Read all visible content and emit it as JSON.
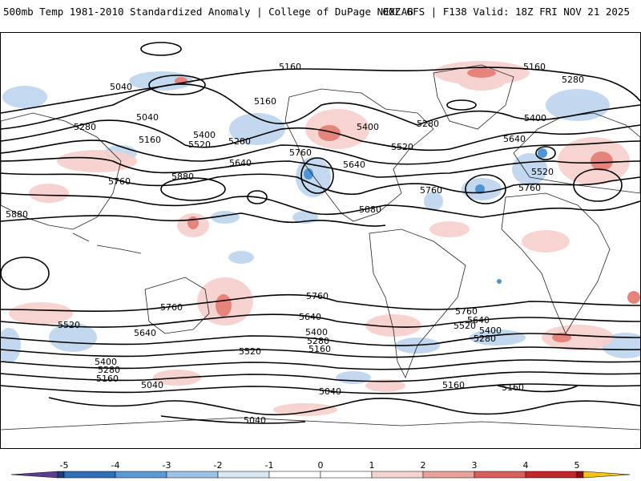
{
  "header": {
    "left_title": "500mb Temp 1981-2010 Standardized Anomaly | College of DuPage NEXLAB",
    "right_title": "00Z GFS | F138 Valid: 18Z FRI NOV 21 2025"
  },
  "map": {
    "variable": "500mb height contours (dm x10) with standardized temperature anomaly shading",
    "contour_labels": [
      "5160",
      "5040",
      "5280",
      "5400",
      "5520",
      "5640",
      "5760",
      "5880"
    ],
    "labels_shown": [
      {
        "text": "5160",
        "id": "label-5160-pacific-north"
      },
      {
        "text": "5040",
        "id": "label-5040-bering"
      },
      {
        "text": "5040",
        "id": "label-5040-aleutian"
      },
      {
        "text": "5280",
        "id": "label-5280-npac"
      },
      {
        "text": "5160",
        "id": "label-5160-npac"
      },
      {
        "text": "5400",
        "id": "label-5400-npac"
      },
      {
        "text": "5520",
        "id": "label-5520-npac"
      },
      {
        "text": "5280",
        "id": "label-5280-npac-east"
      },
      {
        "text": "5160",
        "id": "label-5160-alaska"
      },
      {
        "text": "5640",
        "id": "label-5640-npac"
      },
      {
        "text": "5760",
        "id": "label-5760-npac-west"
      },
      {
        "text": "5880",
        "id": "label-5880-subtrop"
      },
      {
        "text": "5880",
        "id": "label-5880-asia"
      },
      {
        "text": "5760",
        "id": "label-5760-us-west"
      },
      {
        "text": "5640",
        "id": "label-5640-us"
      },
      {
        "text": "5400",
        "id": "label-5400-canada"
      },
      {
        "text": "5520",
        "id": "label-5520-east"
      },
      {
        "text": "5280",
        "id": "label-5280-atlantic"
      },
      {
        "text": "5880",
        "id": "label-5880-gulf"
      },
      {
        "text": "5760",
        "id": "label-5760-atlantic"
      },
      {
        "text": "5160",
        "id": "label-5160-arctic"
      },
      {
        "text": "5280",
        "id": "label-5280-arctic"
      },
      {
        "text": "5400",
        "id": "label-5400-europe"
      },
      {
        "text": "5640",
        "id": "label-5640-europe"
      },
      {
        "text": "5520",
        "id": "label-5520-europe"
      },
      {
        "text": "5760",
        "id": "label-5760-africa"
      },
      {
        "text": "5760",
        "id": "label-5760-spac"
      },
      {
        "text": "5640",
        "id": "label-5640-spac"
      },
      {
        "text": "5520",
        "id": "label-5520-spac-west"
      },
      {
        "text": "5400",
        "id": "label-5400-spac-west"
      },
      {
        "text": "5280",
        "id": "label-5280-spac-west"
      },
      {
        "text": "5160",
        "id": "label-5160-spac-west"
      },
      {
        "text": "5520",
        "id": "label-5520-spac"
      },
      {
        "text": "5040",
        "id": "label-5040-ant-1"
      },
      {
        "text": "5040",
        "id": "label-5040-ant-2"
      },
      {
        "text": "5040",
        "id": "label-5040-ant-3"
      },
      {
        "text": "5760",
        "id": "label-5760-sam"
      },
      {
        "text": "5640",
        "id": "label-5640-sam"
      },
      {
        "text": "5400",
        "id": "label-5400-sam"
      },
      {
        "text": "5280",
        "id": "label-5280-sam"
      },
      {
        "text": "5160",
        "id": "label-5160-sam"
      },
      {
        "text": "5760",
        "id": "label-5760-satl"
      },
      {
        "text": "5640",
        "id": "label-5640-satl"
      },
      {
        "text": "5520",
        "id": "label-5520-satl"
      },
      {
        "text": "5400",
        "id": "label-5400-satl"
      },
      {
        "text": "5280",
        "id": "label-5280-satl"
      },
      {
        "text": "5160",
        "id": "label-5160-satl-1"
      },
      {
        "text": "5160",
        "id": "label-5160-satl-2"
      }
    ]
  },
  "colorbar": {
    "ticks": [
      "-5",
      "-4",
      "-3",
      "-2",
      "-1",
      "0",
      "1",
      "2",
      "3",
      "4",
      "5"
    ],
    "colors": [
      "#5c3d8f",
      "#1f3a7a",
      "#2f6fb7",
      "#5a9bd5",
      "#9cc3e6",
      "#d9e6f3",
      "#ffffff",
      "#ffffff",
      "#f6d3d0",
      "#e8a19b",
      "#d9605a",
      "#c0282a",
      "#8f0f14",
      "#f0c419"
    ]
  }
}
